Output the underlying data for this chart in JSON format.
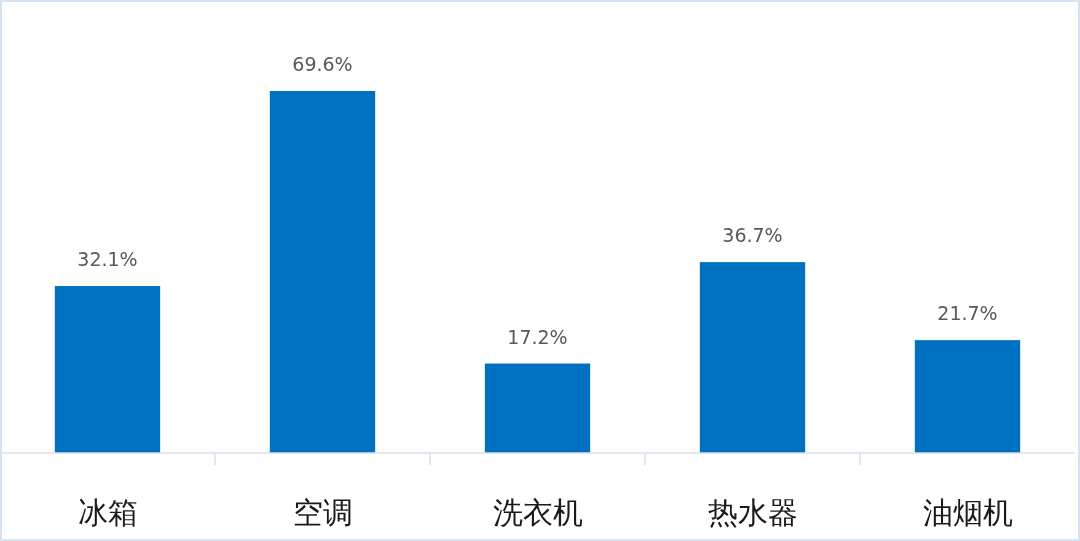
{
  "chart_data": {
    "type": "bar",
    "categories": [
      "冰箱",
      "空调",
      "洗衣机",
      "热水器",
      "油烟机"
    ],
    "values": [
      32.1,
      69.6,
      17.2,
      36.7,
      21.7
    ],
    "value_labels": [
      "32.1%",
      "69.6%",
      "17.2%",
      "36.7%",
      "21.7%"
    ],
    "color": "#0070c0",
    "tick_labels": "x"
  }
}
